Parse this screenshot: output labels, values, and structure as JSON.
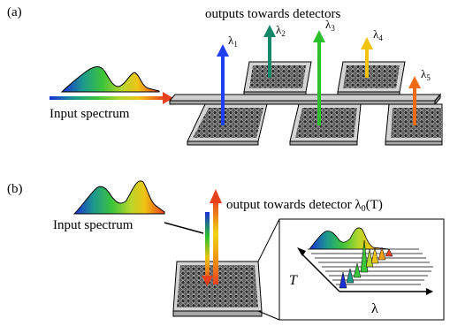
{
  "panel_a": {
    "label": "(a)",
    "outputs_caption": "outputs towards detectors",
    "input_label": "Input spectrum",
    "outputs": [
      {
        "sym": "λ",
        "sub": "1",
        "color": "#1f3ff0"
      },
      {
        "sym": "λ",
        "sub": "2",
        "color": "#15876a"
      },
      {
        "sym": "λ",
        "sub": "3",
        "color": "#2cc12c"
      },
      {
        "sym": "λ",
        "sub": "4",
        "color": "#f2c40e"
      },
      {
        "sym": "λ",
        "sub": "5",
        "color": "#f26a12"
      }
    ]
  },
  "panel_b": {
    "label": "(b)",
    "output_caption_prefix": "output towards detector ",
    "output_caption_sym": "λ",
    "output_caption_sub": "0",
    "output_caption_suffix": "(T)",
    "input_label": "Input spectrum",
    "inset_axis_y": "T",
    "inset_axis_x": "λ"
  },
  "colors": {
    "spectrum": [
      "#1a2fd6",
      "#1c9a8c",
      "#3cc43a",
      "#b6d62c",
      "#f0c414",
      "#e8401c"
    ],
    "chip_fill": "#d8d8d8",
    "waveguide_fill": "#bdbdbd",
    "hole_fill": "#3a3a3a"
  }
}
